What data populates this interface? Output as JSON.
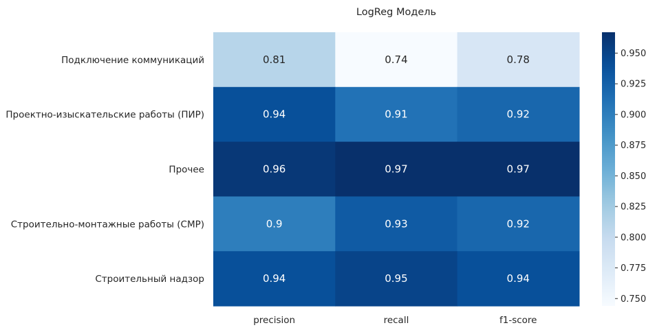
{
  "chart_data": {
    "type": "heatmap",
    "title": "LogReg Модель",
    "xlabel": "",
    "ylabel": "",
    "columns": [
      "precision",
      "recall",
      "f1-score"
    ],
    "rows": [
      "Подключение коммуникаций",
      "Проектно-изыскательские работы (ПИР)",
      "Прочее",
      "Строительно-монтажные работы (СМР)",
      "Строительный надзор"
    ],
    "values": [
      [
        0.81,
        0.74,
        0.78
      ],
      [
        0.94,
        0.91,
        0.92
      ],
      [
        0.96,
        0.97,
        0.97
      ],
      [
        0.9,
        0.93,
        0.92
      ],
      [
        0.94,
        0.95,
        0.94
      ]
    ],
    "labels": [
      [
        "0.81",
        "0.74",
        "0.78"
      ],
      [
        "0.94",
        "0.91",
        "0.92"
      ],
      [
        "0.96",
        "0.97",
        "0.97"
      ],
      [
        "0.9",
        "0.93",
        "0.92"
      ],
      [
        "0.94",
        "0.95",
        "0.94"
      ]
    ],
    "colormap": "Blues",
    "colorbar": {
      "vmin": 0.744,
      "vmax": 0.967,
      "ticks": [
        0.75,
        0.775,
        0.8,
        0.825,
        0.85,
        0.875,
        0.9,
        0.925,
        0.95
      ],
      "tick_labels": [
        "0.750",
        "0.775",
        "0.800",
        "0.825",
        "0.850",
        "0.875",
        "0.900",
        "0.925",
        "0.950"
      ]
    }
  }
}
